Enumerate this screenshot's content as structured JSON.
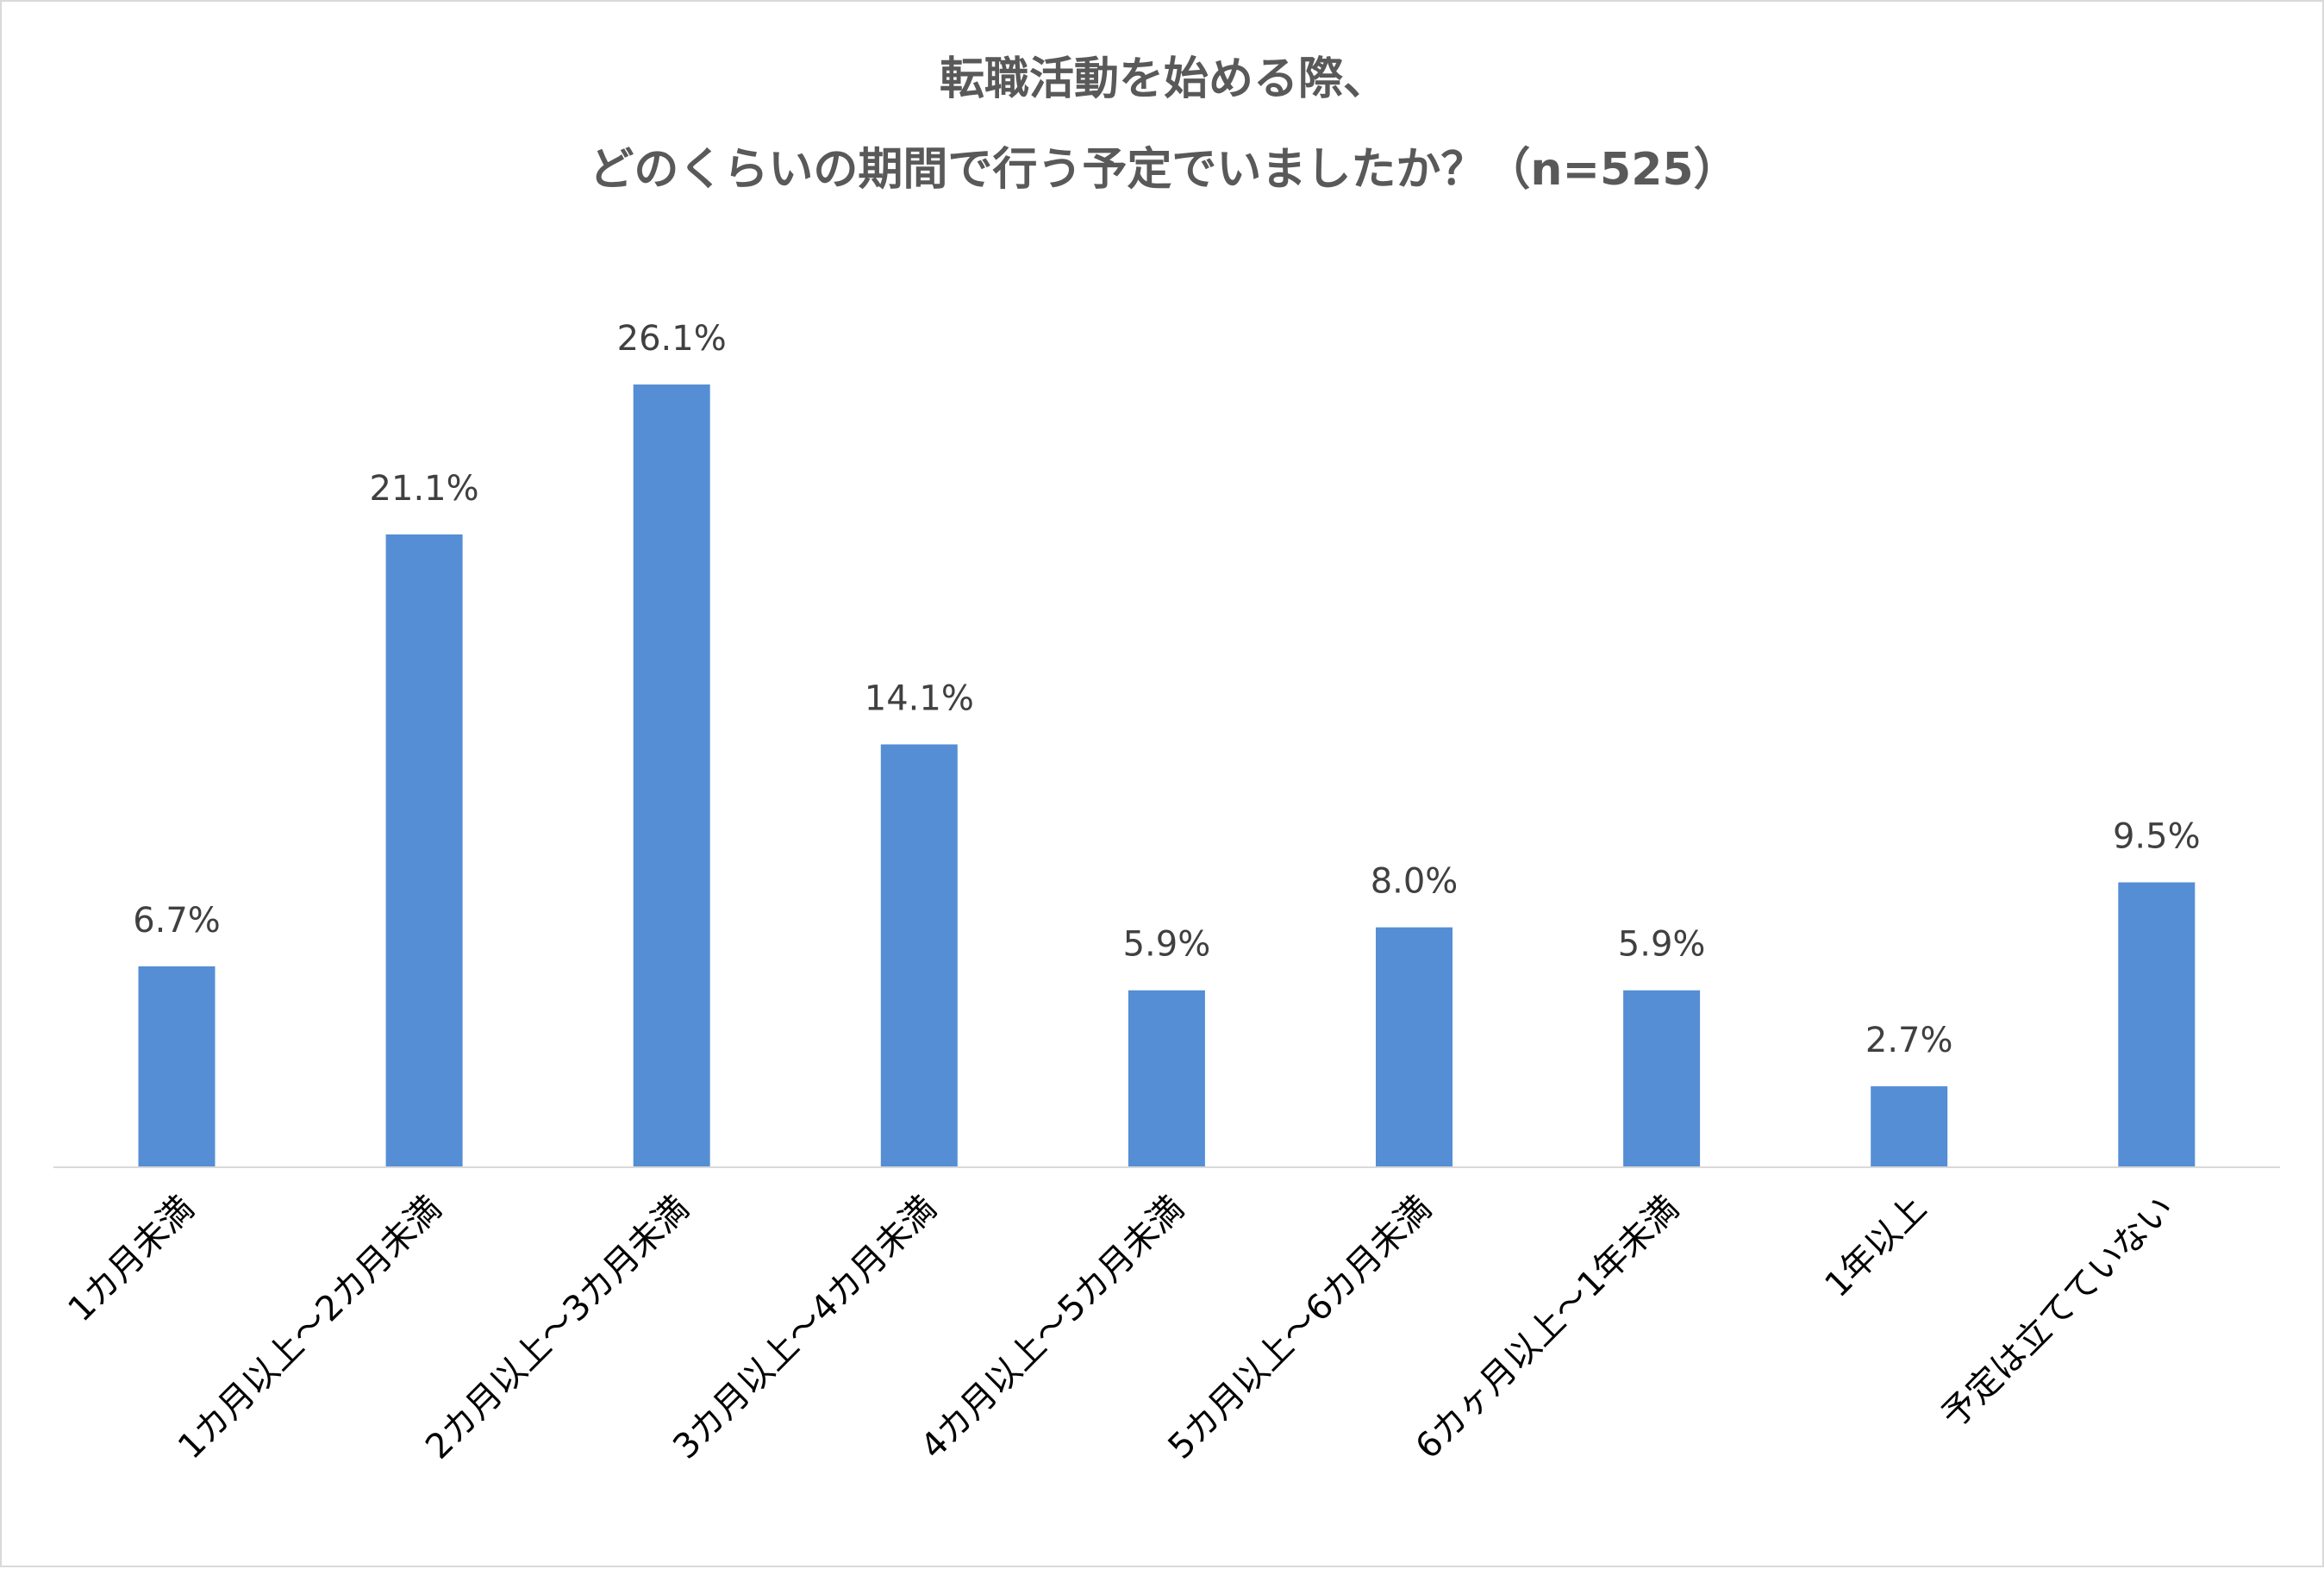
{
  "chart_data": {
    "type": "bar",
    "title": [
      "転職活動を始める際、",
      "どのくらいの期間で行う予定でいましたか？（n=525）"
    ],
    "xlabel": "",
    "ylabel": "",
    "categories": [
      "1カ月未満",
      "1カ月以上～2カ月未満",
      "2カ月以上～3カ月未満",
      "3カ月以上～4カ月未満",
      "4カ月以上～5カ月未満",
      "5カ月以上～6カ月未満",
      "6カヶ月以上～1年未満",
      "1年以上",
      "予定は立てていない"
    ],
    "values": [
      6.7,
      21.1,
      26.1,
      14.1,
      5.9,
      8.0,
      5.9,
      2.7,
      9.5
    ],
    "data_labels": [
      "6.7%",
      "21.1%",
      "26.1%",
      "14.1%",
      "5.9%",
      "8.0%",
      "5.9%",
      "2.7%",
      "9.5%"
    ],
    "unit": "%",
    "ylim": [
      0,
      26.1
    ],
    "grid": false,
    "legend": "none",
    "bar_color": "#558ED5",
    "axis_label_rotation": -45
  }
}
